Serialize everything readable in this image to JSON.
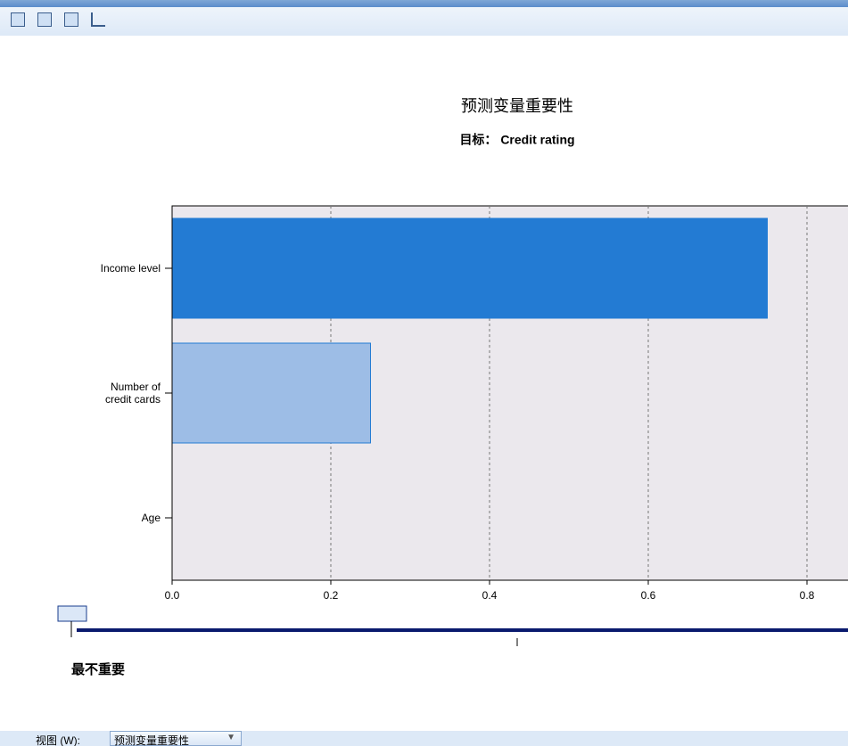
{
  "chart_data": {
    "type": "bar",
    "orientation": "horizontal",
    "title": "预测变量重要性",
    "subtitle": "目标： Credit rating",
    "categories": [
      "Income level",
      "Number of\ncredit cards",
      "Age"
    ],
    "values": [
      0.75,
      0.25,
      0
    ],
    "colors": [
      "#237bd3",
      "#9dbde6",
      "#9dbde6"
    ],
    "xlim": [
      0,
      1
    ],
    "xticks": [
      {
        "value": 0,
        "label": "0.0"
      },
      {
        "value": 0.2,
        "label": "0.2"
      },
      {
        "value": 0.4,
        "label": "0.4"
      },
      {
        "value": 0.6,
        "label": "0.6"
      },
      {
        "value": 0.8,
        "label": "0.8"
      }
    ],
    "grid": true
  },
  "slider": {
    "label": "最不重要"
  },
  "footer": {
    "label": "视图 (W):",
    "dropdown": "预测变量重要性"
  }
}
